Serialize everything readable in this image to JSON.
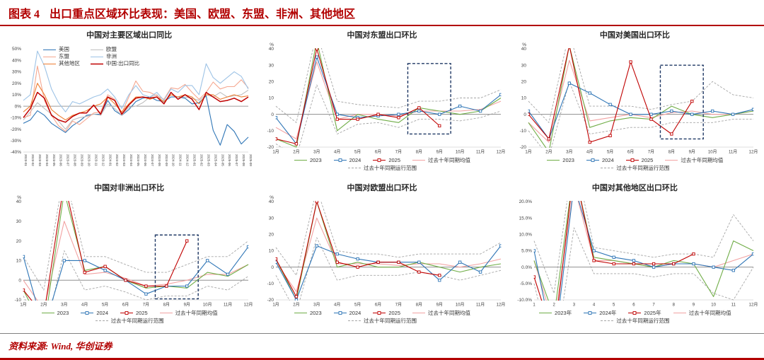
{
  "header": {
    "label": "图表 4",
    "title": "出口重点区域环比表现：美国、欧盟、东盟、非洲、其他地区"
  },
  "footer": {
    "source": "资料来源: Wind, 华创证券"
  },
  "colors": {
    "accent": "#b20000",
    "green_2023": "#70ad47",
    "blue_2024": "#2e75b6",
    "red_2025": "#c00000",
    "mean_pink": "#f2a2a2",
    "range_gray": "#a6a6a6",
    "highlight_box": "#1f3864"
  },
  "chart_data": [
    {
      "type": "line",
      "title": "中国对主要区域出口同比",
      "y_unit": null,
      "ylim": [
        -40,
        50
      ],
      "ytick": 10,
      "ytick_format": "pct0",
      "x_rotate": true,
      "legend_position": "inside",
      "x": [
        "2023-01",
        "2023-02",
        "2023-03",
        "2023-04",
        "2023-05",
        "2023-06",
        "2023-07",
        "2023-08",
        "2023-09",
        "2023-10",
        "2023-11",
        "2023-12",
        "2024-01",
        "2024-02",
        "2024-03",
        "2024-04",
        "2024-05",
        "2024-06",
        "2024-07",
        "2024-08",
        "2024-09",
        "2024-10",
        "2024-11",
        "2024-12",
        "2025-01",
        "2025-02",
        "2025-03",
        "2025-04",
        "2025-05",
        "2025-06",
        "2025-07",
        "2025-08",
        "2025-09"
      ],
      "series": [
        {
          "name": "美国",
          "color": "#2e75b6",
          "values": [
            -15,
            -12,
            -4,
            -8,
            -15,
            -19,
            -23,
            -17,
            -13,
            -8,
            -7,
            -7,
            5,
            -4,
            -8,
            -3,
            4,
            7,
            8,
            5,
            4,
            8,
            8,
            7,
            2,
            3,
            9,
            -21,
            -34,
            -16,
            -22,
            -33,
            -27
          ]
        },
        {
          "name": "欧盟",
          "color": "#bfbfbf",
          "values": [
            -12,
            -5,
            3,
            -2,
            -7,
            -13,
            -20,
            -12,
            -10,
            -9,
            -7,
            -8,
            2,
            -2,
            -8,
            -1,
            0,
            3,
            8,
            10,
            3,
            10,
            8,
            8,
            7,
            5,
            10,
            8,
            12,
            8,
            9,
            10,
            14
          ]
        },
        {
          "name": "东盟",
          "color": "#f5a891",
          "values": [
            -10,
            -8,
            35,
            5,
            -8,
            -17,
            -22,
            -13,
            -16,
            -11,
            -6,
            -5,
            10,
            6,
            -6,
            8,
            22,
            13,
            12,
            9,
            6,
            16,
            15,
            19,
            12,
            6,
            12,
            21,
            15,
            17,
            17,
            23,
            16
          ]
        },
        {
          "name": "非洲",
          "color": "#9dc3e6",
          "values": [
            5,
            10,
            48,
            35,
            15,
            3,
            -5,
            4,
            2,
            5,
            8,
            10,
            15,
            8,
            -2,
            10,
            18,
            10,
            8,
            12,
            5,
            15,
            12,
            18,
            18,
            10,
            37,
            25,
            20,
            25,
            30,
            26,
            15
          ]
        },
        {
          "name": "其他地区",
          "color": "#ed7d31",
          "values": [
            -5,
            0,
            20,
            10,
            -3,
            -8,
            -12,
            -8,
            -6,
            -4,
            0,
            2,
            8,
            2,
            -5,
            2,
            8,
            8,
            6,
            8,
            4,
            10,
            8,
            10,
            8,
            2,
            10,
            10,
            6,
            8,
            10,
            8,
            9
          ]
        },
        {
          "name": "中国:出口同比",
          "color": "#c00000",
          "thick": true,
          "values": [
            -10,
            -2,
            12,
            7,
            -8,
            -12,
            -14,
            -9,
            -6,
            -6,
            1,
            -7,
            8,
            5,
            -7,
            1,
            7,
            8,
            7,
            8,
            2,
            12,
            6,
            10,
            6,
            -3,
            12,
            8,
            4,
            5,
            7,
            4,
            8
          ]
        }
      ],
      "range": null,
      "highlight": null
    },
    {
      "type": "line",
      "title": "中国对东盟出口环比",
      "y_unit": "%",
      "ylim": [
        -20,
        40
      ],
      "ytick": 10,
      "ytick_format": "int",
      "x_rotate": false,
      "legend_position": "bottom",
      "x": [
        "1月",
        "2月",
        "3月",
        "4月",
        "5月",
        "6月",
        "7月",
        "8月",
        "9月",
        "10月",
        "11月",
        "12月"
      ],
      "series": [
        {
          "name": "2023",
          "color": "#70ad47",
          "values": [
            -15,
            -20,
            45,
            -10,
            0,
            -3,
            -5,
            4,
            2,
            0,
            2,
            10
          ]
        },
        {
          "name": "2024",
          "color": "#2e75b6",
          "marker": "square",
          "values": [
            -2,
            -18,
            35,
            0,
            -2,
            -1,
            0,
            2,
            0,
            5,
            2,
            12
          ]
        },
        {
          "name": "2025",
          "color": "#c00000",
          "marker": "square",
          "values": [
            -15,
            -18,
            40,
            -3,
            -3,
            0,
            -2,
            4,
            -7,
            null,
            null,
            null
          ]
        },
        {
          "name": "过去十年同期均值",
          "color": "#f2a2a2",
          "behind": true,
          "values": [
            -8,
            -15,
            32,
            -3,
            0,
            0,
            -1,
            2,
            2,
            2,
            3,
            8
          ]
        }
      ],
      "range": {
        "name": "过去十年同期运行范围",
        "color": "#a6a6a6",
        "upper": [
          5,
          -5,
          50,
          8,
          6,
          5,
          4,
          8,
          8,
          10,
          10,
          15
        ],
        "lower": [
          -18,
          -26,
          18,
          -12,
          -6,
          -5,
          -8,
          -3,
          -3,
          -4,
          -2,
          2
        ]
      },
      "highlight": {
        "x_from": "8月",
        "x_to": "9月",
        "y0": -12,
        "y1": 31
      }
    },
    {
      "type": "line",
      "title": "中国对美国出口环比",
      "y_unit": "%",
      "ylim": [
        -20,
        40
      ],
      "ytick": 10,
      "ytick_format": "int",
      "x_rotate": false,
      "legend_position": "bottom",
      "x": [
        "1月",
        "2月",
        "3月",
        "4月",
        "5月",
        "6月",
        "7月",
        "8月",
        "9月",
        "10月",
        "11月",
        "12月"
      ],
      "series": [
        {
          "name": "2023",
          "color": "#70ad47",
          "values": [
            -5,
            -23,
            42,
            -8,
            -4,
            -2,
            -3,
            5,
            0,
            -2,
            0,
            2
          ]
        },
        {
          "name": "2024",
          "color": "#2e75b6",
          "marker": "square",
          "values": [
            2,
            -15,
            19,
            13,
            6,
            0,
            0,
            2,
            0,
            2,
            0,
            3
          ]
        },
        {
          "name": "2025",
          "color": "#c00000",
          "marker": "square",
          "values": [
            0,
            -15,
            42,
            -17,
            -13,
            32,
            -3,
            -12,
            8,
            null,
            null,
            null
          ]
        },
        {
          "name": "过去十年同期均值",
          "color": "#f2a2a2",
          "behind": true,
          "values": [
            -5,
            -17,
            33,
            -4,
            -2,
            0,
            -2,
            1,
            2,
            0,
            0,
            2
          ]
        }
      ],
      "range": {
        "name": "过去十年同期运行范围",
        "color": "#a6a6a6",
        "upper": [
          8,
          -5,
          50,
          5,
          5,
          5,
          3,
          6,
          8,
          20,
          12,
          10
        ],
        "lower": [
          -10,
          -26,
          20,
          -12,
          -10,
          -8,
          -8,
          -5,
          -5,
          -5,
          -3,
          -3
        ]
      },
      "highlight": {
        "x_from": "8月",
        "x_to": "9月",
        "y0": -15,
        "y1": 30
      }
    },
    {
      "type": "line",
      "title": "中国对非洲出口环比",
      "y_unit": "%",
      "ylim": [
        -10,
        40
      ],
      "ytick": 10,
      "ytick_format": "int",
      "x_rotate": false,
      "legend_position": "bottom",
      "x": [
        "1月",
        "2月",
        "3月",
        "4月",
        "5月",
        "6月",
        "7月",
        "8月",
        "9月",
        "10月",
        "11月",
        "12月"
      ],
      "series": [
        {
          "name": "2023",
          "color": "#70ad47",
          "values": [
            -5,
            -25,
            45,
            5,
            7,
            0,
            -4,
            -3,
            -4,
            4,
            2,
            8
          ]
        },
        {
          "name": "2024",
          "color": "#2e75b6",
          "marker": "square",
          "values": [
            12,
            -25,
            10,
            10,
            5,
            0,
            -7,
            -3,
            -3,
            10,
            3,
            17
          ]
        },
        {
          "name": "2025",
          "color": "#c00000",
          "marker": "square",
          "values": [
            -5,
            -18,
            50,
            4,
            7,
            0,
            -3,
            -3,
            20,
            null,
            null,
            null
          ]
        },
        {
          "name": "过去十年同期均值",
          "color": "#f2a2a2",
          "behind": true,
          "values": [
            0,
            -15,
            30,
            3,
            4,
            1,
            -3,
            -2,
            0,
            3,
            3,
            8
          ]
        }
      ],
      "range": {
        "name": "过去十年同期运行范围",
        "color": "#a6a6a6",
        "upper": [
          12,
          -5,
          55,
          12,
          12,
          8,
          4,
          4,
          8,
          12,
          12,
          20
        ],
        "lower": [
          -8,
          -30,
          15,
          -5,
          -3,
          -6,
          -10,
          -8,
          -8,
          -3,
          -5,
          2
        ]
      },
      "highlight": {
        "x_from": "8月",
        "x_to": "9月",
        "y0": -9.5,
        "y1": 23
      }
    },
    {
      "type": "line",
      "title": "中国对欧盟出口环比",
      "y_unit": "%",
      "ylim": [
        -20,
        40
      ],
      "ytick": 10,
      "ytick_format": "int",
      "x_rotate": false,
      "legend_position": "bottom",
      "x": [
        "1月",
        "2月",
        "3月",
        "4月",
        "5月",
        "6月",
        "7月",
        "8月",
        "9月",
        "10月",
        "11月",
        "12月"
      ],
      "series": [
        {
          "name": "2023",
          "color": "#70ad47",
          "values": [
            5,
            -20,
            40,
            0,
            3,
            0,
            0,
            3,
            0,
            -3,
            0,
            2
          ]
        },
        {
          "name": "2024",
          "color": "#2e75b6",
          "marker": "square",
          "values": [
            3,
            -20,
            13,
            8,
            5,
            3,
            3,
            3,
            -8,
            3,
            -3,
            13
          ]
        },
        {
          "name": "2025",
          "color": "#c00000",
          "marker": "square",
          "values": [
            5,
            -18,
            40,
            3,
            0,
            3,
            3,
            -3,
            -5,
            null,
            null,
            null
          ]
        },
        {
          "name": "过去十年同期均值",
          "color": "#f2a2a2",
          "behind": true,
          "values": [
            3,
            -15,
            30,
            2,
            2,
            2,
            1,
            2,
            2,
            0,
            2,
            5
          ]
        }
      ],
      "range": {
        "name": "过去十年同期运行范围",
        "color": "#a6a6a6",
        "upper": [
          12,
          -5,
          48,
          10,
          8,
          8,
          6,
          8,
          8,
          8,
          8,
          15
        ],
        "lower": [
          -5,
          -28,
          18,
          -8,
          -5,
          -5,
          -5,
          -3,
          -5,
          -8,
          -5,
          -2
        ]
      },
      "highlight": null
    },
    {
      "type": "line",
      "title": "中国对其他地区出口环比",
      "y_unit": null,
      "ylim": [
        -10,
        20
      ],
      "ytick": 5,
      "ytick_format": "pct1",
      "x_rotate": false,
      "legend_position": "bottom",
      "x": [
        "1",
        "2",
        "3",
        "4",
        "5",
        "6",
        "7",
        "8",
        "9",
        "10",
        "11",
        "12月"
      ],
      "series": [
        {
          "name": "2023年",
          "color": "#70ad47",
          "values": [
            2,
            -15,
            30,
            3,
            2,
            1,
            0,
            2,
            1,
            -9,
            8,
            5
          ]
        },
        {
          "name": "2024年",
          "color": "#2e75b6",
          "marker": "square",
          "values": [
            5,
            -25,
            25,
            5,
            3,
            2,
            0,
            1,
            1,
            0,
            -1,
            4
          ]
        },
        {
          "name": "2025年",
          "color": "#c00000",
          "marker": "square",
          "values": [
            -3,
            -22,
            30,
            2,
            1,
            1,
            1,
            1,
            4,
            null,
            null,
            null
          ]
        },
        {
          "name": "过去十年同期均值",
          "color": "#f2a2a2",
          "behind": true,
          "values": [
            2,
            -18,
            25,
            2,
            2,
            1,
            0,
            1,
            1,
            0,
            2,
            4
          ]
        }
      ],
      "range": {
        "name": "过去十年同期运行范围",
        "color": "#a6a6a6",
        "upper": [
          8,
          -8,
          35,
          6,
          5,
          4,
          3,
          4,
          4,
          3,
          16,
          8
        ],
        "lower": [
          -5,
          -30,
          12,
          -2,
          -2,
          -2,
          -3,
          -2,
          -2,
          -8,
          -10,
          0
        ]
      },
      "highlight": null
    }
  ]
}
